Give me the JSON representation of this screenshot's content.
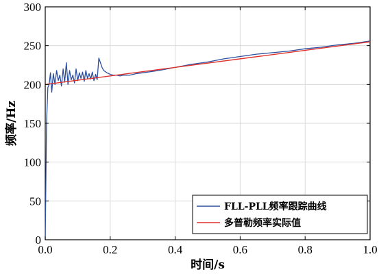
{
  "chart_data": {
    "type": "line",
    "xlabel": "时间/s",
    "ylabel": "频率/Hz",
    "xlim": [
      0,
      1
    ],
    "ylim": [
      0,
      300
    ],
    "xticks": [
      0,
      0.2,
      0.4,
      0.6,
      0.8,
      1
    ],
    "xtick_labels": [
      "0.0",
      "0.2",
      "0.4",
      "0.6",
      "0.8",
      "1.0"
    ],
    "yticks": [
      0,
      50,
      100,
      150,
      200,
      250,
      300
    ],
    "ytick_labels": [
      "0",
      "50",
      "100",
      "150",
      "200",
      "250",
      "300"
    ],
    "grid": true,
    "legend_position": "bottom-right",
    "series": [
      {
        "name": "FLL-PLL频率跟踪曲线",
        "color": "#2b4f9e",
        "x": [
          0,
          0.004,
          0.008,
          0.012,
          0.016,
          0.02,
          0.025,
          0.03,
          0.035,
          0.04,
          0.045,
          0.05,
          0.055,
          0.06,
          0.065,
          0.07,
          0.075,
          0.08,
          0.085,
          0.09,
          0.095,
          0.1,
          0.105,
          0.11,
          0.115,
          0.12,
          0.125,
          0.13,
          0.135,
          0.14,
          0.145,
          0.15,
          0.155,
          0.16,
          0.165,
          0.17,
          0.175,
          0.18,
          0.19,
          0.2,
          0.21,
          0.22,
          0.23,
          0.24,
          0.26,
          0.28,
          0.3,
          0.35,
          0.4,
          0.45,
          0.5,
          0.55,
          0.6,
          0.65,
          0.7,
          0.75,
          0.8,
          0.85,
          0.9,
          0.95,
          1.0
        ],
        "y": [
          0,
          150,
          196,
          200,
          215,
          190,
          214,
          200,
          218,
          205,
          212,
          198,
          220,
          203,
          228,
          200,
          218,
          206,
          212,
          202,
          220,
          205,
          215,
          208,
          216,
          204,
          218,
          208,
          214,
          207,
          216,
          205,
          213,
          206,
          234,
          228,
          222,
          218,
          215,
          213,
          212,
          212,
          211,
          212,
          212,
          214,
          215,
          218,
          222,
          226,
          229,
          233,
          236,
          239,
          241,
          243,
          246,
          248,
          251,
          253,
          256
        ]
      },
      {
        "name": "多普勒频率实际值",
        "color": "#e0302c",
        "x": [
          0,
          1
        ],
        "y": [
          200,
          255
        ]
      }
    ]
  }
}
